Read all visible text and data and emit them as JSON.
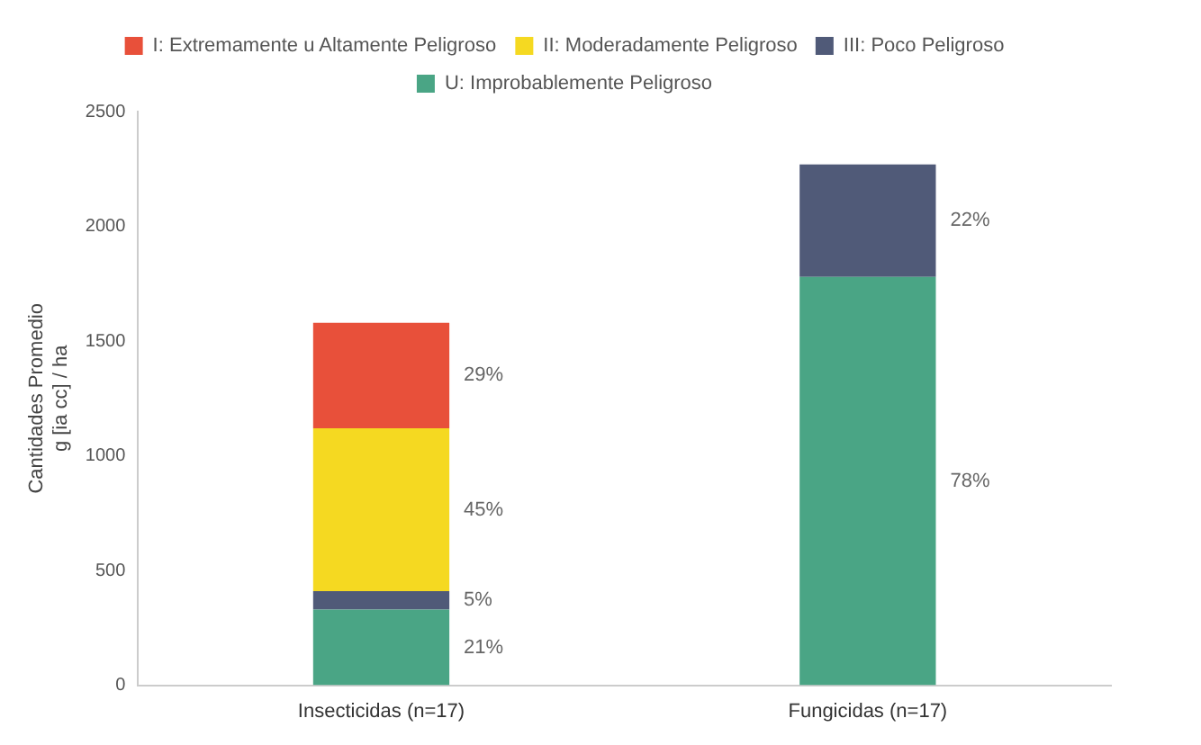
{
  "chart_data": {
    "type": "bar",
    "stacked": true,
    "ylabel": "Cantidades Promedio\ng [ia cc] / ha",
    "categories": [
      "Insecticidas (n=17)",
      "Fungicidas (n=17)"
    ],
    "series": [
      {
        "name": "U: Improbablemente Peligroso",
        "color": "#4aa585",
        "values": [
          330,
          1780
        ]
      },
      {
        "name": "III: Poco Peligroso",
        "color": "#505a78",
        "values": [
          80,
          490
        ]
      },
      {
        "name": "II: Moderadamente Peligroso",
        "color": "#f5d921",
        "values": [
          710,
          null
        ]
      },
      {
        "name": "I: Extremamente u Altamente Peligroso",
        "color": "#e8503a",
        "values": [
          460,
          null
        ]
      }
    ],
    "annotations": [
      "21%",
      "5%",
      "45%",
      "29%",
      "78%",
      "22%"
    ],
    "ylim": [
      0,
      2500
    ],
    "yticks": [
      0,
      500,
      1000,
      1500,
      2000,
      2500
    ],
    "grid": false,
    "legend": "top"
  }
}
